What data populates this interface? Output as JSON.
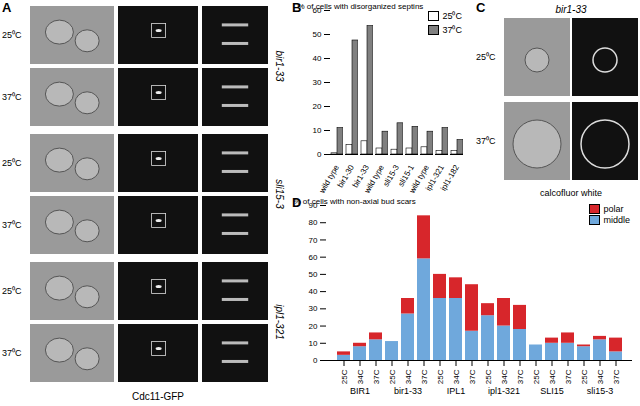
{
  "panels": {
    "A": {
      "panel": "A",
      "rows": [
        {
          "strain": "bir1-33",
          "temps": [
            "25⁰C",
            "37⁰C"
          ]
        },
        {
          "strain": "sli15-3",
          "temps": [
            "25⁰C",
            "37⁰C"
          ]
        },
        {
          "strain": "ipl1-321",
          "temps": [
            "25⁰C",
            "37⁰C"
          ]
        }
      ],
      "caption": "Cdc11-GFP"
    },
    "C": {
      "panel": "C",
      "title": "bir1-33",
      "temps": [
        "25⁰C",
        "37⁰C"
      ],
      "caption": "calcofluor white"
    }
  },
  "chart_data": [
    {
      "panel": "B",
      "type": "bar",
      "y_label": "% of cells with disorganized septins",
      "categories": [
        "wild type",
        "bir1-30",
        "bir1-33",
        "wild type",
        "sli15-3",
        "sli15-1",
        "wild type",
        "ipl1-321",
        "ipl1-182"
      ],
      "series": [
        {
          "name": "25⁰C",
          "color": "#ffffff",
          "values": [
            0.5,
            4,
            5.5,
            2.5,
            2,
            2.5,
            3,
            1.5,
            1.5
          ]
        },
        {
          "name": "37⁰C",
          "color": "#808080",
          "values": [
            11,
            47.5,
            53.5,
            9.5,
            13,
            11.5,
            9.5,
            11,
            6
          ]
        }
      ],
      "ylim": [
        0,
        60
      ],
      "yticks": [
        0,
        10,
        20,
        30,
        40,
        50,
        60
      ],
      "grid": false,
      "stacked": false,
      "legend": "top-right"
    },
    {
      "panel": "D",
      "type": "bar",
      "y_label": "% of cells with non-axial bud scars",
      "categories": [
        "25C",
        "34C",
        "37C",
        "25C",
        "34C",
        "37C",
        "25C",
        "34C",
        "37C",
        "25C",
        "34C",
        "37C",
        "25C",
        "34C",
        "37C",
        "25C",
        "34C",
        "37C"
      ],
      "groups": [
        "BIR1",
        "bir1-33",
        "IPL1",
        "ipl1-321",
        "SLI15",
        "sli15-3"
      ],
      "series": [
        {
          "name": "middle",
          "color": "#6fa8dc",
          "values": [
            3,
            8,
            12,
            11,
            27,
            59,
            36,
            36,
            17,
            26,
            20,
            18,
            9,
            10,
            10,
            8,
            12,
            5
          ]
        },
        {
          "name": "polar",
          "color": "#d7262b",
          "values": [
            2,
            2,
            4,
            0,
            9,
            25,
            14,
            12,
            27,
            7,
            16,
            14,
            0,
            3,
            6,
            1,
            2,
            8
          ]
        }
      ],
      "ylim": [
        0,
        90
      ],
      "yticks": [
        0,
        10,
        20,
        30,
        40,
        50,
        60,
        70,
        80,
        90
      ],
      "grid": false,
      "stacked": true,
      "legend": "top-right"
    }
  ]
}
